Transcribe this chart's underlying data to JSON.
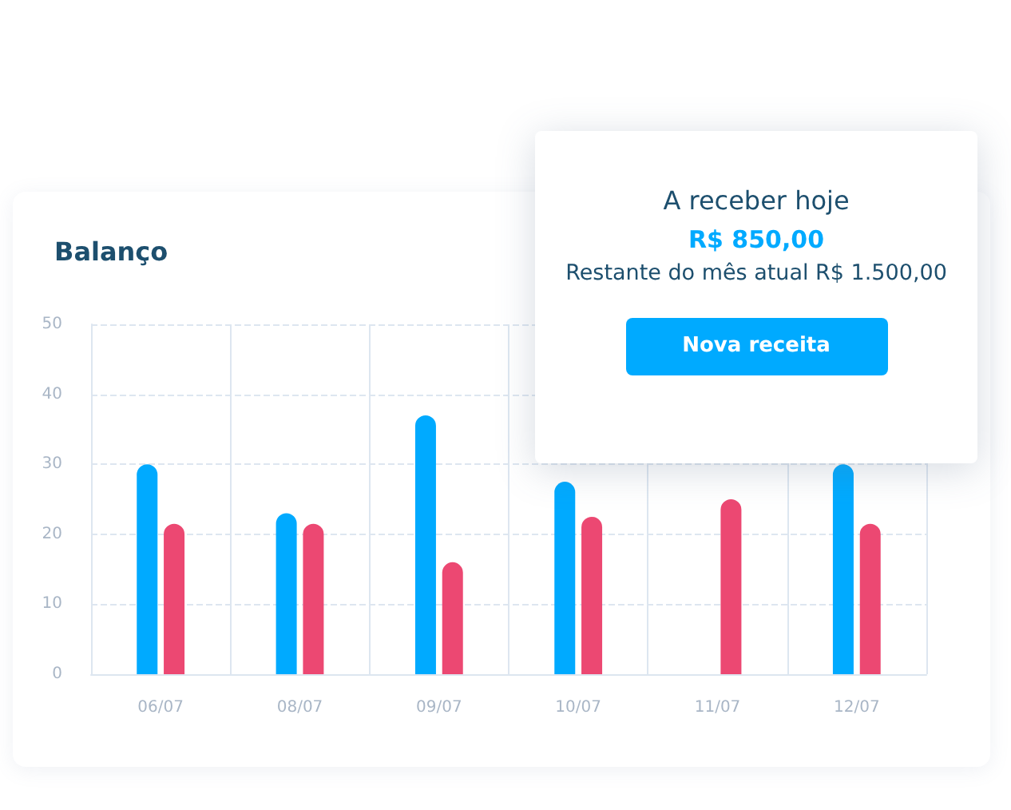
{
  "chart_data": {
    "type": "bar",
    "title": "Balanço",
    "categories": [
      "06/07",
      "08/07",
      "09/07",
      "10/07",
      "11/07",
      "12/07"
    ],
    "series": [
      {
        "color": "#00aaff",
        "values": [
          30,
          23,
          37,
          27.5,
          null,
          30
        ]
      },
      {
        "color": "#ec4872",
        "values": [
          21.5,
          21.5,
          16,
          22.5,
          25,
          21.5
        ]
      }
    ],
    "ylim": [
      0,
      50
    ],
    "yticks": [
      0,
      10,
      20,
      30,
      40,
      50
    ],
    "grid": true,
    "annotations": [
      "A receber hoje",
      "R$ 850,00",
      "Restante do mês atual R$ 1.500,00",
      "Nova receita"
    ]
  }
}
